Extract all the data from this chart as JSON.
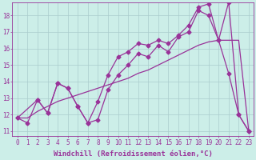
{
  "bg_color": "#cceee8",
  "grid_color": "#aacccc",
  "line_color": "#993399",
  "xlabel": "Windchill (Refroidissement éolien,°C)",
  "xlim": [
    -0.5,
    23.5
  ],
  "ylim": [
    10.7,
    18.8
  ],
  "yticks": [
    11,
    12,
    13,
    14,
    15,
    16,
    17,
    18
  ],
  "xticks": [
    0,
    1,
    2,
    3,
    4,
    5,
    6,
    7,
    8,
    9,
    10,
    11,
    12,
    13,
    14,
    15,
    16,
    17,
    18,
    19,
    20,
    21,
    22,
    23
  ],
  "s1_x": [
    0,
    1,
    2,
    3,
    4,
    5,
    6,
    7,
    8,
    9,
    10,
    11,
    12,
    13,
    14,
    15,
    16,
    17,
    18,
    19,
    20,
    21,
    22,
    23
  ],
  "s1_y": [
    11.8,
    11.5,
    12.9,
    12.1,
    13.9,
    13.6,
    12.5,
    11.5,
    11.7,
    13.5,
    14.4,
    15.0,
    15.7,
    15.5,
    16.2,
    15.8,
    16.7,
    17.0,
    18.3,
    18.0,
    16.5,
    14.5,
    12.0,
    11.0
  ],
  "s2_x": [
    0,
    2,
    3,
    4,
    5,
    6,
    7,
    8,
    9,
    10,
    11,
    12,
    13,
    14,
    15,
    16,
    17,
    18,
    19,
    20,
    21,
    22,
    23
  ],
  "s2_y": [
    11.8,
    12.9,
    12.1,
    13.9,
    13.6,
    12.5,
    11.5,
    12.8,
    14.4,
    15.5,
    15.8,
    16.3,
    16.2,
    16.5,
    16.3,
    16.8,
    17.4,
    18.5,
    18.7,
    16.5,
    18.8,
    12.0,
    11.0
  ],
  "s3_x": [
    0,
    1,
    2,
    3,
    4,
    5,
    6,
    7,
    8,
    9,
    10,
    11,
    12,
    13,
    14,
    15,
    16,
    17,
    18,
    19,
    20,
    21,
    22,
    23
  ],
  "s3_y": [
    11.8,
    11.8,
    12.2,
    12.5,
    12.8,
    13.0,
    13.2,
    13.4,
    13.6,
    13.8,
    14.0,
    14.2,
    14.5,
    14.7,
    15.0,
    15.3,
    15.6,
    15.9,
    16.2,
    16.4,
    16.5,
    16.5,
    16.5,
    11.0
  ],
  "marker": "D",
  "markersize": 2.5,
  "linewidth": 0.9,
  "tick_fontsize": 5.5,
  "xlabel_fontsize": 6.5
}
